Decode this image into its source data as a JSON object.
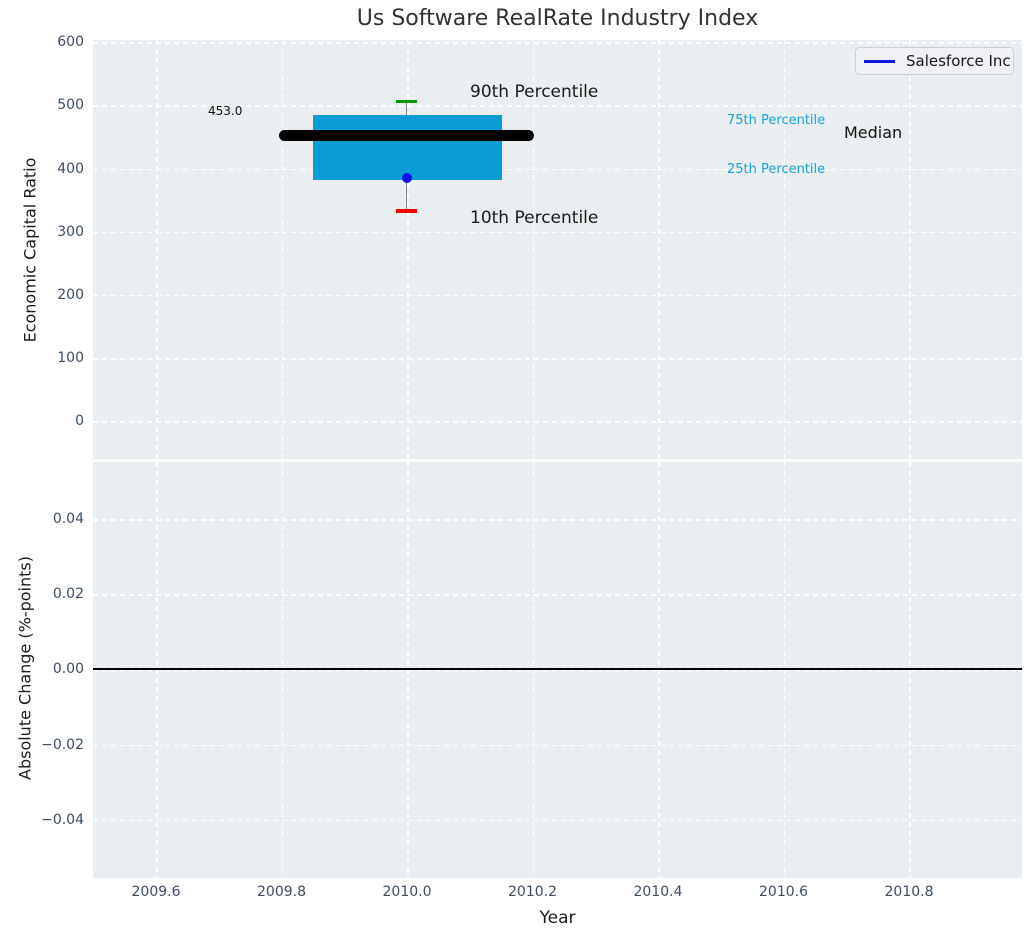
{
  "title": "Us Software RealRate Industry Index",
  "legend": {
    "label": "Salesforce Inc",
    "line_color": "#1414dd"
  },
  "top_chart": {
    "ylabel": "Economic Capital Ratio",
    "yticks": [
      "600",
      "500",
      "400",
      "300",
      "200",
      "100",
      "0"
    ],
    "annotations": {
      "median_value": "453.0",
      "p90_label": "90th Percentile",
      "p10_label": "10th Percentile",
      "p75_label": "75th Percentile",
      "p25_label": "25th Percentile",
      "median_label": "Median"
    }
  },
  "bottom_chart": {
    "ylabel": "Absolute Change (%-points)",
    "yticks": [
      "0.04",
      "0.02",
      "0.00",
      "−0.02",
      "−0.04"
    ]
  },
  "xaxis": {
    "label": "Year",
    "ticks": [
      "2009.6",
      "2009.8",
      "2010.0",
      "2010.2",
      "2010.4",
      "2010.6",
      "2010.8"
    ]
  },
  "colors": {
    "axes_background": "#e9eff0",
    "grid": "#ffffff",
    "box_fill": "#0a9dd5",
    "p90_cap": "#089408",
    "p10_cap": "#f20800",
    "median_line": "#000000",
    "company_marker": "#0d0dee",
    "percentile_label_text": "#1a9fd6",
    "tick_label_text": "#3d4c63"
  },
  "chart_data": [
    {
      "type": "box",
      "title": "Us Software RealRate Industry Index",
      "xlabel": "Year",
      "ylabel": "Economic Capital Ratio",
      "xlim": [
        2009.5,
        2011.0
      ],
      "ylim": [
        -60,
        600
      ],
      "yticks": [
        0,
        100,
        200,
        300,
        400,
        500,
        600
      ],
      "xticks": [
        2009.6,
        2009.8,
        2010.0,
        2010.2,
        2010.4,
        2010.6,
        2010.8
      ],
      "grid": true,
      "legend_position": "upper right",
      "boxes": [
        {
          "x": 2010.0,
          "p10": 334,
          "p25": 383,
          "median": 453,
          "p75": 486,
          "p90": 505,
          "median_annotation": "453.0",
          "box_x_span": [
            2009.85,
            2010.15
          ],
          "median_x_span": [
            2009.8,
            2010.2
          ]
        }
      ],
      "series": [
        {
          "name": "Salesforce Inc",
          "type": "scatter",
          "x": [
            2010.0
          ],
          "y": [
            385
          ],
          "color": "#0d0dee"
        }
      ]
    },
    {
      "type": "line",
      "xlabel": "Year",
      "ylabel": "Absolute Change (%-points)",
      "xlim": [
        2009.5,
        2011.0
      ],
      "ylim": [
        -0.055,
        0.055
      ],
      "yticks": [
        -0.04,
        -0.02,
        0.0,
        0.02,
        0.04
      ],
      "xticks": [
        2009.6,
        2009.8,
        2010.0,
        2010.2,
        2010.4,
        2010.6,
        2010.8
      ],
      "grid": true,
      "zero_line_y": 0.0,
      "series": [
        {
          "name": "Salesforce Inc",
          "x": [
            2010.0
          ],
          "y": [
            0.0
          ]
        }
      ]
    }
  ]
}
